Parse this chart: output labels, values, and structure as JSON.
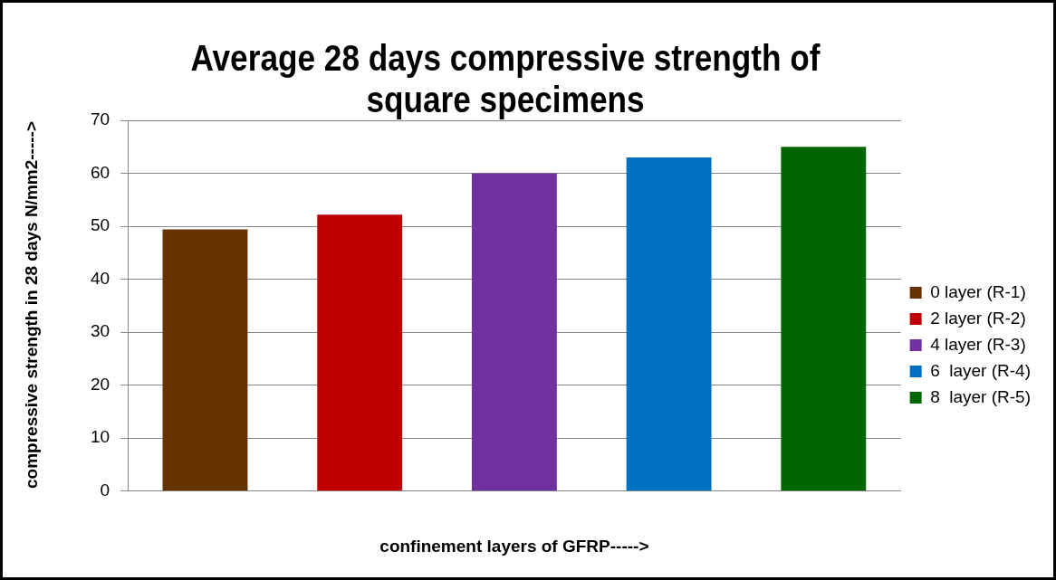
{
  "chart_data": {
    "type": "bar",
    "title": "Average  28 days compressive strength of square specimens",
    "xlabel": "confinement layers of GFRP----->",
    "ylabel": "compressive strength in 28 days N/mm2----->",
    "categories": [
      null,
      null,
      null,
      null,
      null
    ],
    "series": [
      {
        "name": "0 layer (R-1)",
        "color": "#663300",
        "values": [
          49.4,
          null,
          null,
          null,
          null
        ]
      },
      {
        "name": "2 layer (R-2)",
        "color": "#c00000",
        "values": [
          null,
          52.2,
          null,
          null,
          null
        ]
      },
      {
        "name": "4 layer (R-3)",
        "color": "#7030a0",
        "values": [
          null,
          null,
          60,
          null,
          null
        ]
      },
      {
        "name": "6  layer (R-4)",
        "color": "#0070c0",
        "values": [
          null,
          null,
          null,
          63,
          null
        ]
      },
      {
        "name": "8  layer (R-5)",
        "color": "#006600",
        "values": [
          null,
          null,
          null,
          null,
          65
        ]
      }
    ],
    "ylim": [
      0,
      70
    ],
    "yticks": [
      0,
      10,
      20,
      30,
      40,
      50,
      60,
      70
    ],
    "grid": "y",
    "legend": "right"
  }
}
